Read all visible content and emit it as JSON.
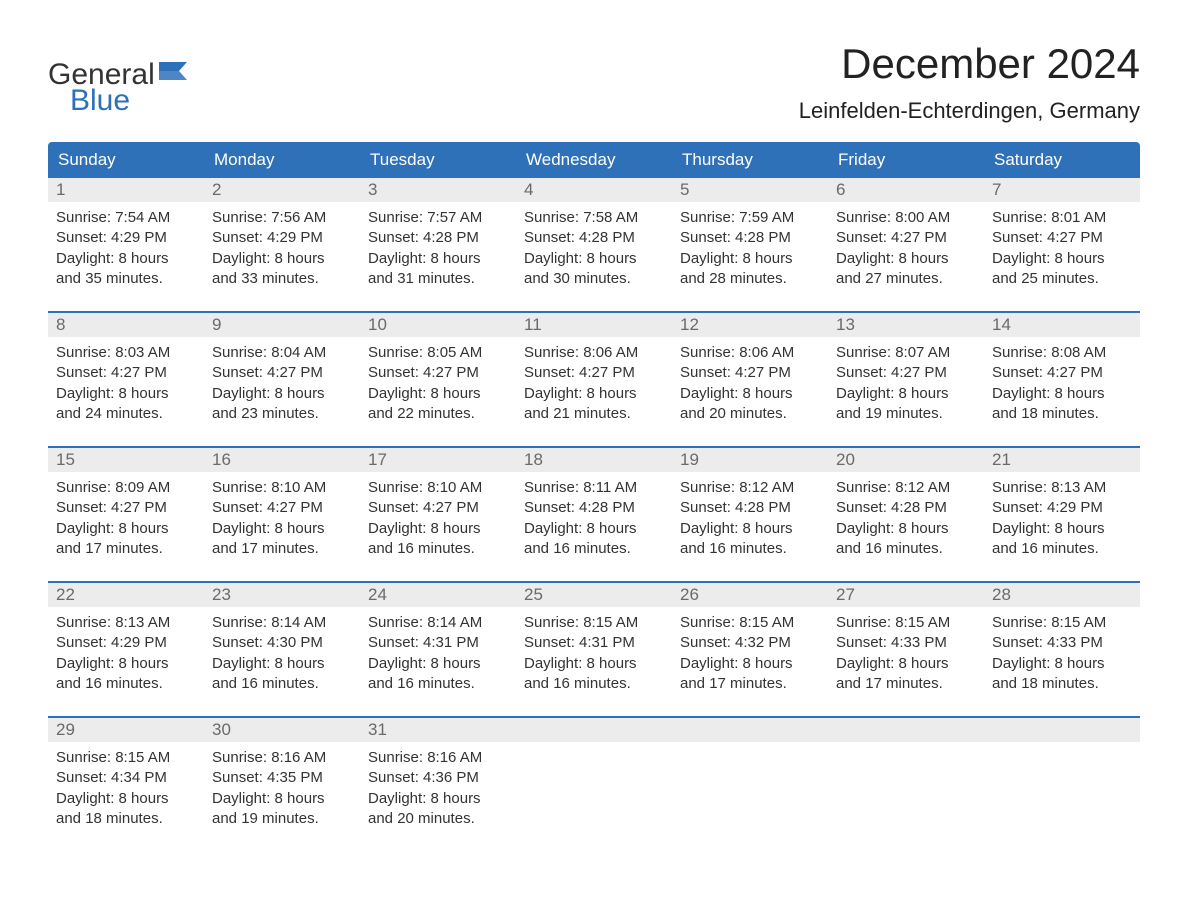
{
  "brand": {
    "general": "General",
    "blue": "Blue"
  },
  "title": "December 2024",
  "location": "Leinfelden-Echterdingen, Germany",
  "colors": {
    "header_bg": "#2f71b8",
    "header_text": "#ffffff",
    "daynum_bg": "#ececec",
    "daynum_text": "#6a6a6a",
    "border": "#2f71b8",
    "text": "#333333",
    "background": "#ffffff"
  },
  "weekdays": [
    "Sunday",
    "Monday",
    "Tuesday",
    "Wednesday",
    "Thursday",
    "Friday",
    "Saturday"
  ],
  "weeks": [
    [
      {
        "n": "1",
        "sr": "7:54 AM",
        "ss": "4:29 PM",
        "dl": "8 hours and 35 minutes."
      },
      {
        "n": "2",
        "sr": "7:56 AM",
        "ss": "4:29 PM",
        "dl": "8 hours and 33 minutes."
      },
      {
        "n": "3",
        "sr": "7:57 AM",
        "ss": "4:28 PM",
        "dl": "8 hours and 31 minutes."
      },
      {
        "n": "4",
        "sr": "7:58 AM",
        "ss": "4:28 PM",
        "dl": "8 hours and 30 minutes."
      },
      {
        "n": "5",
        "sr": "7:59 AM",
        "ss": "4:28 PM",
        "dl": "8 hours and 28 minutes."
      },
      {
        "n": "6",
        "sr": "8:00 AM",
        "ss": "4:27 PM",
        "dl": "8 hours and 27 minutes."
      },
      {
        "n": "7",
        "sr": "8:01 AM",
        "ss": "4:27 PM",
        "dl": "8 hours and 25 minutes."
      }
    ],
    [
      {
        "n": "8",
        "sr": "8:03 AM",
        "ss": "4:27 PM",
        "dl": "8 hours and 24 minutes."
      },
      {
        "n": "9",
        "sr": "8:04 AM",
        "ss": "4:27 PM",
        "dl": "8 hours and 23 minutes."
      },
      {
        "n": "10",
        "sr": "8:05 AM",
        "ss": "4:27 PM",
        "dl": "8 hours and 22 minutes."
      },
      {
        "n": "11",
        "sr": "8:06 AM",
        "ss": "4:27 PM",
        "dl": "8 hours and 21 minutes."
      },
      {
        "n": "12",
        "sr": "8:06 AM",
        "ss": "4:27 PM",
        "dl": "8 hours and 20 minutes."
      },
      {
        "n": "13",
        "sr": "8:07 AM",
        "ss": "4:27 PM",
        "dl": "8 hours and 19 minutes."
      },
      {
        "n": "14",
        "sr": "8:08 AM",
        "ss": "4:27 PM",
        "dl": "8 hours and 18 minutes."
      }
    ],
    [
      {
        "n": "15",
        "sr": "8:09 AM",
        "ss": "4:27 PM",
        "dl": "8 hours and 17 minutes."
      },
      {
        "n": "16",
        "sr": "8:10 AM",
        "ss": "4:27 PM",
        "dl": "8 hours and 17 minutes."
      },
      {
        "n": "17",
        "sr": "8:10 AM",
        "ss": "4:27 PM",
        "dl": "8 hours and 16 minutes."
      },
      {
        "n": "18",
        "sr": "8:11 AM",
        "ss": "4:28 PM",
        "dl": "8 hours and 16 minutes."
      },
      {
        "n": "19",
        "sr": "8:12 AM",
        "ss": "4:28 PM",
        "dl": "8 hours and 16 minutes."
      },
      {
        "n": "20",
        "sr": "8:12 AM",
        "ss": "4:28 PM",
        "dl": "8 hours and 16 minutes."
      },
      {
        "n": "21",
        "sr": "8:13 AM",
        "ss": "4:29 PM",
        "dl": "8 hours and 16 minutes."
      }
    ],
    [
      {
        "n": "22",
        "sr": "8:13 AM",
        "ss": "4:29 PM",
        "dl": "8 hours and 16 minutes."
      },
      {
        "n": "23",
        "sr": "8:14 AM",
        "ss": "4:30 PM",
        "dl": "8 hours and 16 minutes."
      },
      {
        "n": "24",
        "sr": "8:14 AM",
        "ss": "4:31 PM",
        "dl": "8 hours and 16 minutes."
      },
      {
        "n": "25",
        "sr": "8:15 AM",
        "ss": "4:31 PM",
        "dl": "8 hours and 16 minutes."
      },
      {
        "n": "26",
        "sr": "8:15 AM",
        "ss": "4:32 PM",
        "dl": "8 hours and 17 minutes."
      },
      {
        "n": "27",
        "sr": "8:15 AM",
        "ss": "4:33 PM",
        "dl": "8 hours and 17 minutes."
      },
      {
        "n": "28",
        "sr": "8:15 AM",
        "ss": "4:33 PM",
        "dl": "8 hours and 18 minutes."
      }
    ],
    [
      {
        "n": "29",
        "sr": "8:15 AM",
        "ss": "4:34 PM",
        "dl": "8 hours and 18 minutes."
      },
      {
        "n": "30",
        "sr": "8:16 AM",
        "ss": "4:35 PM",
        "dl": "8 hours and 19 minutes."
      },
      {
        "n": "31",
        "sr": "8:16 AM",
        "ss": "4:36 PM",
        "dl": "8 hours and 20 minutes."
      },
      null,
      null,
      null,
      null
    ]
  ],
  "labels": {
    "sunrise": "Sunrise: ",
    "sunset": "Sunset: ",
    "daylight": "Daylight: "
  }
}
